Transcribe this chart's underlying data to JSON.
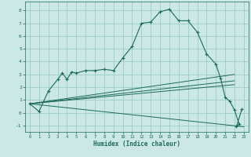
{
  "xlabel": "Humidex (Indice chaleur)",
  "background_color": "#cce8e4",
  "grid_color": "#9dccc6",
  "line_color": "#1a6b5a",
  "xlim": [
    -0.5,
    23.5
  ],
  "ylim": [
    -1.5,
    8.7
  ],
  "xticks": [
    0,
    1,
    2,
    3,
    4,
    5,
    6,
    7,
    8,
    9,
    10,
    11,
    12,
    13,
    14,
    15,
    16,
    17,
    18,
    19,
    20,
    21,
    22,
    23
  ],
  "yticks": [
    -1,
    0,
    1,
    2,
    3,
    4,
    5,
    6,
    7,
    8
  ],
  "main_series": [
    [
      0,
      0.7
    ],
    [
      1,
      0.1
    ],
    [
      2,
      1.7
    ],
    [
      3,
      2.6
    ],
    [
      3.5,
      3.1
    ],
    [
      4,
      2.6
    ],
    [
      4.5,
      3.2
    ],
    [
      5,
      3.1
    ],
    [
      6,
      3.3
    ],
    [
      7,
      3.3
    ],
    [
      8,
      3.4
    ],
    [
      9,
      3.3
    ],
    [
      10,
      4.3
    ],
    [
      11,
      5.2
    ],
    [
      12,
      7.0
    ],
    [
      13,
      7.1
    ],
    [
      14,
      7.9
    ],
    [
      15,
      8.1
    ],
    [
      16,
      7.2
    ],
    [
      17,
      7.2
    ],
    [
      18,
      6.3
    ],
    [
      19,
      4.6
    ],
    [
      20,
      3.8
    ],
    [
      20.5,
      2.7
    ],
    [
      21,
      1.2
    ],
    [
      21.5,
      0.9
    ],
    [
      22,
      0.2
    ],
    [
      22.5,
      -0.9
    ],
    [
      22.2,
      -1.1
    ],
    [
      22.8,
      0.3
    ]
  ],
  "straight_lines": [
    [
      [
        0,
        0.7
      ],
      [
        23,
        -1.1
      ]
    ],
    [
      [
        0,
        0.7
      ],
      [
        22,
        3.0
      ]
    ],
    [
      [
        0,
        0.7
      ],
      [
        22,
        2.5
      ]
    ],
    [
      [
        0,
        0.7
      ],
      [
        22,
        2.2
      ]
    ]
  ]
}
